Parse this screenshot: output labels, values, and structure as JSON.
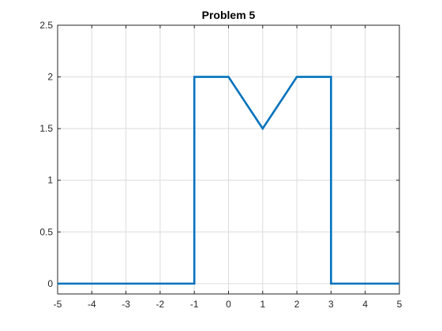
{
  "chart_data": {
    "type": "line",
    "title": "Problem 5",
    "xlabel": "",
    "ylabel": "",
    "xlim": [
      -5,
      5
    ],
    "ylim": [
      -0.1,
      2.5
    ],
    "xticks": [
      -5,
      -4,
      -3,
      -2,
      -1,
      0,
      1,
      2,
      3,
      4,
      5
    ],
    "xtick_labels": [
      "-5",
      "-4",
      "-3",
      "-2",
      "-1",
      "0",
      "1",
      "2",
      "3",
      "4",
      "5"
    ],
    "yticks": [
      0,
      0.5,
      1,
      1.5,
      2,
      2.5
    ],
    "ytick_labels": [
      "0",
      "0.5",
      "1",
      "1.5",
      "2",
      "2.5"
    ],
    "grid": true,
    "legend": "none",
    "series": [
      {
        "color": "#0072BD",
        "x": [
          -5,
          -1,
          -1,
          0,
          1,
          2,
          3,
          3,
          5
        ],
        "y": [
          0,
          0,
          2,
          2,
          1.5,
          2,
          2,
          0,
          0
        ]
      }
    ]
  }
}
